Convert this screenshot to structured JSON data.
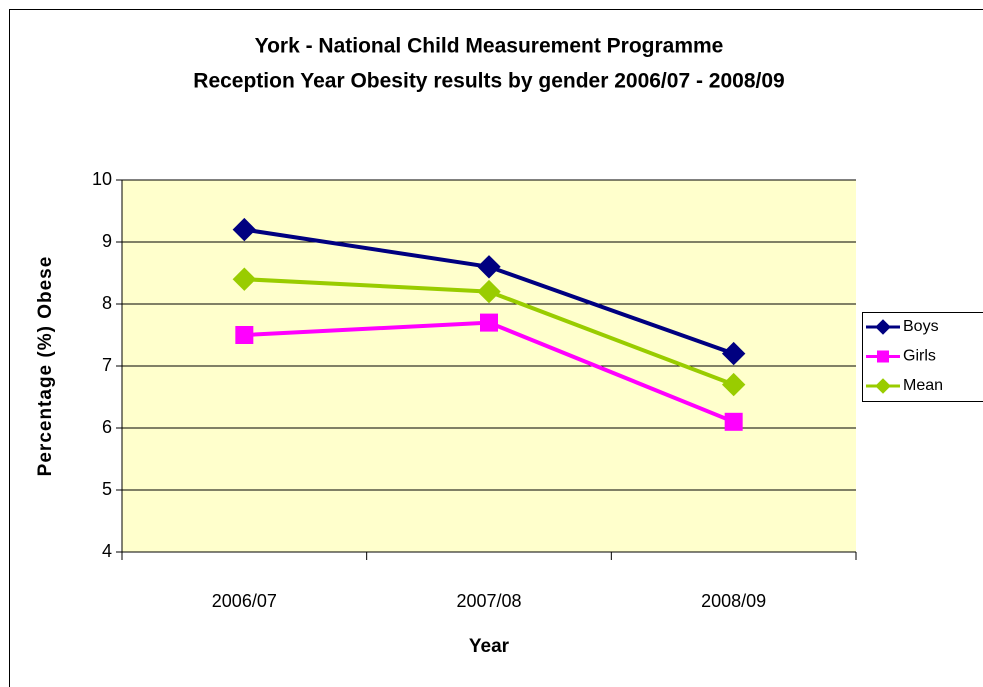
{
  "chart_data": {
    "type": "line",
    "title": "York - National Child Measurement Programme",
    "subtitle": "Reception Year Obesity results by gender 2006/07 - 2008/09",
    "x_label": "Year",
    "y_label": "Percentage (%) Obese",
    "categories": [
      "2006/07",
      "2007/08",
      "2008/09"
    ],
    "series": [
      {
        "name": "Boys",
        "color": "#000080",
        "marker": "diamond",
        "values": [
          9.2,
          8.6,
          7.2
        ]
      },
      {
        "name": "Girls",
        "color": "#ff00ff",
        "marker": "square",
        "values": [
          7.5,
          7.7,
          6.1
        ]
      },
      {
        "name": "Mean",
        "color": "#99cc00",
        "marker": "diamond",
        "values": [
          8.4,
          8.2,
          6.7
        ]
      }
    ],
    "ylim": [
      4,
      10
    ],
    "yticks": [
      4,
      5,
      6,
      7,
      8,
      9,
      10
    ],
    "grid": true,
    "legend": "right"
  }
}
